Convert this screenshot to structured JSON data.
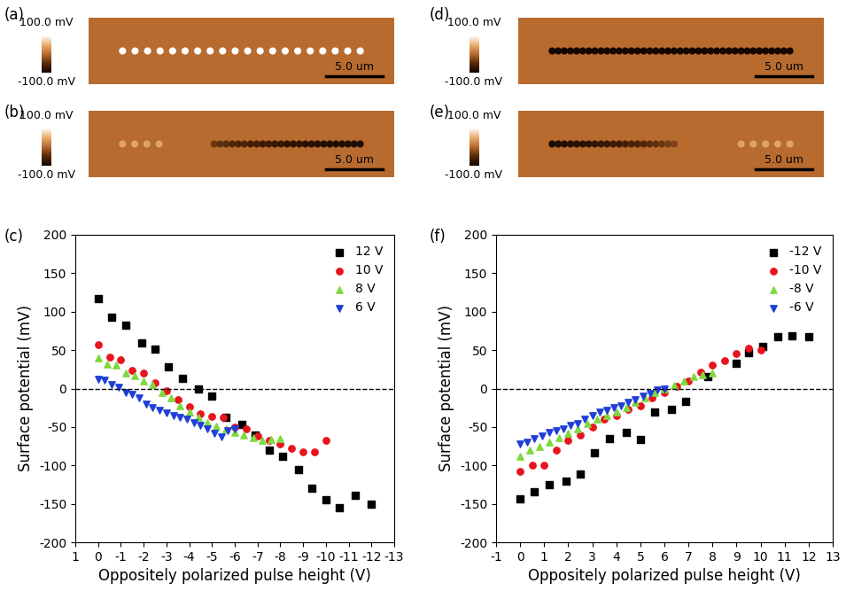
{
  "panels": [
    {
      "label": "(a)",
      "colorbar": {
        "range": [
          -100,
          100
        ],
        "max_label": "100.0 mV",
        "min_label": "-100.0 mV"
      },
      "scale_bar": {
        "length_um": 5,
        "label": "5.0 um"
      },
      "image_size_um": [
        27,
        6
      ],
      "profile_start_um": 3,
      "profile_end_um": 24,
      "profile_mV": [
        100,
        null,
        100,
        null,
        100,
        null,
        100,
        null,
        100,
        null,
        100,
        null,
        100,
        null,
        100,
        null,
        100,
        null,
        100,
        null,
        100,
        null,
        100,
        null,
        100,
        null,
        100,
        null,
        100,
        null,
        100,
        null,
        100,
        null,
        100,
        null,
        100,
        null,
        100
      ]
    },
    {
      "label": "(b)",
      "colorbar": {
        "range": [
          -100,
          100
        ],
        "max_label": "100.0 mV",
        "min_label": "-100.0 mV"
      },
      "scale_bar": {
        "length_um": 5,
        "label": "5.0 um"
      },
      "image_size_um": [
        27,
        6
      ],
      "profile_start_um": 3,
      "profile_end_um": 24,
      "profile_mV": [
        40,
        null,
        40,
        null,
        40,
        null,
        40,
        null,
        null,
        null,
        null,
        null,
        null,
        null,
        null,
        -40,
        -45,
        -50,
        -55,
        -60,
        -60,
        -65,
        -65,
        -70,
        -70,
        -75,
        -75,
        -80,
        -80,
        -80,
        -85,
        -85,
        -85,
        -90,
        -90,
        -90,
        -90,
        -90,
        -90,
        -90
      ]
    },
    {
      "label": "(d)",
      "colorbar": {
        "range": [
          -100,
          100
        ],
        "max_label": "100.0 mV",
        "min_label": "-100.0 mV"
      },
      "scale_bar": {
        "length_um": 5,
        "label": "5.0 um"
      },
      "image_size_um": [
        27,
        6
      ],
      "profile_start_um": 3,
      "profile_end_um": 24,
      "profile_mV": [
        -100,
        -100,
        -100,
        -100,
        -100,
        -100,
        -100,
        -100,
        -100,
        -100,
        -100,
        -100,
        -100,
        -100,
        -100,
        -100,
        -100,
        -100,
        -100,
        -100,
        -100,
        -100,
        -100,
        -100,
        -100,
        -100,
        -100,
        -100,
        -100,
        -100,
        -100,
        -100,
        -100,
        -100,
        -100,
        -100,
        -100,
        -100,
        -100,
        -100
      ]
    },
    {
      "label": "(e)",
      "colorbar": {
        "range": [
          -100,
          100
        ],
        "max_label": "100.0 mV",
        "min_label": "-100.0 mV"
      },
      "scale_bar": {
        "length_um": 5,
        "label": "5.0 um"
      },
      "image_size_um": [
        27,
        6
      ],
      "profile_start_um": 3,
      "profile_end_um": 24,
      "profile_mV": [
        -90,
        -90,
        -90,
        -85,
        -85,
        -85,
        -80,
        -80,
        -75,
        -75,
        -70,
        -70,
        -65,
        -60,
        -60,
        -55,
        -50,
        -45,
        -40,
        -35,
        -30,
        null,
        null,
        null,
        null,
        null,
        null,
        null,
        null,
        null,
        null,
        40,
        null,
        40,
        null,
        40,
        null,
        40,
        null,
        40
      ]
    }
  ],
  "chart_data": [
    {
      "label": "(c)",
      "type": "scatter",
      "x_label": "Oppositely polarized pulse height (V)",
      "y_label": "Surface potential (mV)",
      "xlim": [
        1,
        -13
      ],
      "xticks": [
        1,
        0,
        -1,
        -2,
        -3,
        -4,
        -5,
        -6,
        -7,
        -8,
        -9,
        -10,
        -11,
        -12,
        -13
      ],
      "ylim": [
        -200,
        200
      ],
      "yticks": [
        -200,
        -150,
        -100,
        -50,
        0,
        50,
        100,
        150,
        200
      ],
      "hline": 0,
      "legend": "upper right",
      "series": [
        {
          "name": "12 V",
          "color": "#000000",
          "marker": "square",
          "x": [
            0,
            -0.6,
            -1.2,
            -1.9,
            -2.5,
            -3.1,
            -3.7,
            -4.4,
            -5.0,
            -5.6,
            -6.3,
            -6.9,
            -7.5,
            -8.1,
            -8.8,
            -9.4,
            -10.0,
            -10.6,
            -11.3,
            -12.0
          ],
          "values": [
            117,
            93,
            82,
            59,
            51,
            28,
            13,
            0,
            -10,
            -37,
            -47,
            -60,
            -80,
            -88,
            -106,
            -130,
            -145,
            -155,
            -139,
            -151
          ]
        },
        {
          "name": "10 V",
          "color": "#e8141e",
          "marker": "circle",
          "x": [
            0,
            -0.5,
            -1.0,
            -1.5,
            -2.0,
            -2.5,
            -3.0,
            -3.5,
            -4.0,
            -4.5,
            -5.0,
            -5.5,
            -6.0,
            -6.5,
            -7.0,
            -7.5,
            -8.0,
            -8.5,
            -9.0,
            -9.5,
            -10.0
          ],
          "values": [
            57,
            41,
            38,
            24,
            20,
            8,
            -3,
            -14,
            -24,
            -33,
            -36,
            -37,
            -50,
            -52,
            -62,
            -68,
            -72,
            -78,
            -82,
            -82,
            -67
          ]
        },
        {
          "name": "8 V",
          "color": "#7ed93f",
          "marker": "triangle_up",
          "x": [
            0,
            -0.4,
            -0.8,
            -1.2,
            -1.6,
            -2.0,
            -2.4,
            -2.8,
            -3.2,
            -3.6,
            -4.0,
            -4.4,
            -4.8,
            -5.2,
            -5.6,
            -6.0,
            -6.4,
            -6.8,
            -7.2,
            -7.6,
            -8.0
          ],
          "values": [
            40,
            32,
            30,
            20,
            17,
            10,
            5,
            -5,
            -12,
            -23,
            -31,
            -37,
            -44,
            -49,
            -53,
            -57,
            -60,
            -64,
            -68,
            -66,
            -65
          ]
        },
        {
          "name": "6 V",
          "color": "#1f3fd8",
          "marker": "triangle_down",
          "x": [
            0,
            -0.3,
            -0.6,
            -0.9,
            -1.2,
            -1.5,
            -1.8,
            -2.1,
            -2.4,
            -2.7,
            -3.0,
            -3.3,
            -3.6,
            -3.9,
            -4.2,
            -4.5,
            -4.8,
            -5.1,
            -5.4,
            -5.7,
            -6.0
          ],
          "values": [
            12,
            11,
            5,
            2,
            -5,
            -8,
            -12,
            -20,
            -25,
            -28,
            -32,
            -35,
            -37,
            -40,
            -44,
            -48,
            -52,
            -58,
            -63,
            -55,
            -52
          ]
        }
      ]
    },
    {
      "label": "(f)",
      "type": "scatter",
      "x_label": "Oppositely polarized pulse height (V)",
      "y_label": "Surface potential (mV)",
      "xlim": [
        -1,
        13
      ],
      "xticks": [
        -1,
        0,
        1,
        2,
        3,
        4,
        5,
        6,
        7,
        8,
        9,
        10,
        11,
        12,
        13
      ],
      "ylim": [
        -200,
        200
      ],
      "yticks": [
        -200,
        -150,
        -100,
        -50,
        0,
        50,
        100,
        150,
        200
      ],
      "hline": 0,
      "legend": "upper right",
      "series": [
        {
          "name": "-12 V",
          "color": "#000000",
          "marker": "square",
          "x": [
            0,
            0.6,
            1.2,
            1.9,
            2.5,
            3.1,
            3.7,
            4.4,
            5.0,
            5.6,
            6.3,
            6.9,
            7.8,
            9.0,
            9.5,
            10.1,
            10.7,
            11.3,
            12.0
          ],
          "values": [
            -143,
            -134,
            -125,
            -120,
            -111,
            -83,
            -65,
            -57,
            -66,
            -31,
            -27,
            -17,
            15,
            33,
            47,
            55,
            67,
            69,
            68
          ]
        },
        {
          "name": "-10 V",
          "color": "#e8141e",
          "marker": "circle",
          "x": [
            0,
            0.5,
            1.0,
            1.5,
            2.0,
            2.5,
            3.0,
            3.5,
            4.0,
            4.5,
            5.0,
            5.5,
            6.0,
            6.5,
            7.0,
            7.5,
            8.0,
            8.5,
            9.0,
            9.5,
            10.0
          ],
          "values": [
            -108,
            -100,
            -100,
            -80,
            -67,
            -60,
            -50,
            -40,
            -35,
            -27,
            -22,
            -12,
            -5,
            3,
            10,
            21,
            30,
            36,
            45,
            52,
            50
          ]
        },
        {
          "name": "-8 V",
          "color": "#7ed93f",
          "marker": "triangle_up",
          "x": [
            0,
            0.4,
            0.8,
            1.2,
            1.6,
            2.0,
            2.4,
            2.8,
            3.2,
            3.6,
            4.0,
            4.4,
            4.8,
            5.2,
            5.6,
            6.0,
            6.4,
            6.8,
            7.2,
            7.6,
            8.0
          ],
          "values": [
            -88,
            -80,
            -75,
            -70,
            -64,
            -58,
            -52,
            -46,
            -40,
            -35,
            -30,
            -25,
            -18,
            -12,
            -5,
            0,
            4,
            10,
            16,
            18,
            20
          ]
        },
        {
          "name": "-6 V",
          "color": "#1f3fd8",
          "marker": "triangle_down",
          "x": [
            0,
            0.3,
            0.6,
            0.9,
            1.2,
            1.5,
            1.8,
            2.1,
            2.4,
            2.7,
            3.0,
            3.3,
            3.6,
            3.9,
            4.2,
            4.5,
            4.8,
            5.1,
            5.4,
            5.7,
            6.0
          ],
          "values": [
            -72,
            -70,
            -65,
            -62,
            -57,
            -55,
            -52,
            -48,
            -45,
            -40,
            -35,
            -30,
            -28,
            -25,
            -22,
            -18,
            -14,
            -10,
            -6,
            -2,
            0
          ]
        }
      ]
    }
  ]
}
